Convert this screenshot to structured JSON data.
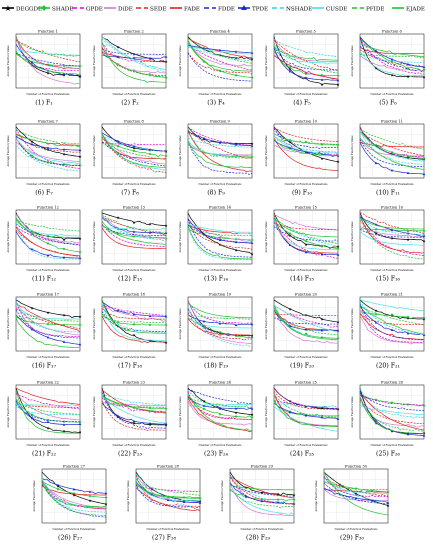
{
  "legend": [
    {
      "name": "DEGGDE",
      "color": "#000000",
      "dash": "",
      "marker": "star"
    },
    {
      "name": "SHADE",
      "color": "#22c233",
      "dash": "",
      "marker": "diamond"
    },
    {
      "name": "GPDE",
      "color": "#e000e0",
      "dash": "5,3",
      "marker": ""
    },
    {
      "name": "DiDE",
      "color": "#d47ad4",
      "dash": "",
      "marker": ""
    },
    {
      "name": "SEDE",
      "color": "#e02020",
      "dash": "5,3",
      "marker": ""
    },
    {
      "name": "FADE",
      "color": "#e02020",
      "dash": "",
      "marker": ""
    },
    {
      "name": "FDDE",
      "color": "#1a2ad0",
      "dash": "5,3",
      "marker": ""
    },
    {
      "name": "TPDE",
      "color": "#1a2ad0",
      "dash": "",
      "marker": "triangle"
    },
    {
      "name": "NSHADE",
      "color": "#2ad8e8",
      "dash": "5,3",
      "marker": ""
    },
    {
      "name": "CUSDE",
      "color": "#4be0e0",
      "dash": "",
      "marker": ""
    },
    {
      "name": "PFIDE",
      "color": "#22c233",
      "dash": "5,3",
      "marker": ""
    },
    {
      "name": "EJADE",
      "color": "#22c233",
      "dash": "",
      "marker": ""
    }
  ],
  "chart_data": [
    {
      "type": "line",
      "title": "Function 1",
      "caption": "(1) F₁",
      "ylabel": "Average Function Value",
      "xlabel": "Number of Function Evaluations"
    },
    {
      "type": "line",
      "title": "Function 2",
      "caption": "(2) F₂",
      "ylabel": "Average Function Value",
      "xlabel": "Number of Function Evaluations"
    },
    {
      "type": "line",
      "title": "Function 4",
      "caption": "(3) F₄",
      "ylabel": "Average Function Value",
      "xlabel": "Number of Function Evaluations"
    },
    {
      "type": "line",
      "title": "Function 5",
      "caption": "(4) F₅",
      "ylabel": "Average Function Value",
      "xlabel": "Number of Function Evaluations"
    },
    {
      "type": "line",
      "title": "Function 6",
      "caption": "(5) F₆",
      "ylabel": "Average Function Value",
      "xlabel": "Number of Function Evaluations"
    },
    {
      "type": "line",
      "title": "Function 7",
      "caption": "(6) F₇",
      "ylabel": "Average Function Value",
      "xlabel": "Number of Function Evaluations"
    },
    {
      "type": "line",
      "title": "Function 8",
      "caption": "(7) F₈",
      "ylabel": "Average Function Value",
      "xlabel": "Number of Function Evaluations"
    },
    {
      "type": "line",
      "title": "Function 9",
      "caption": "(8) F₉",
      "ylabel": "Average Function Value",
      "xlabel": "Number of Function Evaluations"
    },
    {
      "type": "line",
      "title": "Function 10",
      "caption": "(9) F₁₀",
      "ylabel": "Average Function Value",
      "xlabel": "Number of Function Evaluations"
    },
    {
      "type": "line",
      "title": "Function 11",
      "caption": "(10) F₁₁",
      "ylabel": "Average Function Value",
      "xlabel": "Number of Function Evaluations"
    },
    {
      "type": "line",
      "title": "Function 12",
      "caption": "(11) F₁₂",
      "ylabel": "Average Function Value",
      "xlabel": "Number of Function Evaluations"
    },
    {
      "type": "line",
      "title": "Function 13",
      "caption": "(12) F₁₃",
      "ylabel": "Average Function Value",
      "xlabel": "Number of Function Evaluations"
    },
    {
      "type": "line",
      "title": "Function 14",
      "caption": "(13) F₁₄",
      "ylabel": "Average Function Value",
      "xlabel": "Number of Function Evaluations"
    },
    {
      "type": "line",
      "title": "Function 15",
      "caption": "(14) F₁₅",
      "ylabel": "Average Function Value",
      "xlabel": "Number of Function Evaluations"
    },
    {
      "type": "line",
      "title": "Function 16",
      "caption": "(15) F₁₆",
      "ylabel": "Average Function Value",
      "xlabel": "Number of Function Evaluations"
    },
    {
      "type": "line",
      "title": "Function 17",
      "caption": "(16) F₁₇",
      "ylabel": "Average Function Value",
      "xlabel": "Number of Function Evaluations"
    },
    {
      "type": "line",
      "title": "Function 18",
      "caption": "(17) F₁₈",
      "ylabel": "Average Function Value",
      "xlabel": "Number of Function Evaluations"
    },
    {
      "type": "line",
      "title": "Function 19",
      "caption": "(18) F₁₉",
      "ylabel": "Average Function Value",
      "xlabel": "Number of Function Evaluations"
    },
    {
      "type": "line",
      "title": "Function 20",
      "caption": "(19) F₂₀",
      "ylabel": "Average Function Value",
      "xlabel": "Number of Function Evaluations"
    },
    {
      "type": "line",
      "title": "Function 21",
      "caption": "(20) F₂₁",
      "ylabel": "Average Function Value",
      "xlabel": "Number of Function Evaluations"
    },
    {
      "type": "line",
      "title": "Function 22",
      "caption": "(21) F₂₂",
      "ylabel": "Average Function Value",
      "xlabel": "Number of Function Evaluations"
    },
    {
      "type": "line",
      "title": "Function 23",
      "caption": "(22) F₂₃",
      "ylabel": "Average Function Value",
      "xlabel": "Number of Function Evaluations"
    },
    {
      "type": "line",
      "title": "Function 24",
      "caption": "(23) F₂₄",
      "ylabel": "Average Function Value",
      "xlabel": "Number of Function Evaluations"
    },
    {
      "type": "line",
      "title": "Function 25",
      "caption": "(24) F₂₅",
      "ylabel": "Average Function Value",
      "xlabel": "Number of Function Evaluations"
    },
    {
      "type": "line",
      "title": "Function 26",
      "caption": "(25) F₂₆",
      "ylabel": "Average Function Value",
      "xlabel": "Number of Function Evaluations"
    },
    {
      "type": "line",
      "title": "Function 27",
      "caption": "(26) F₂₇",
      "ylabel": "Average Function Value",
      "xlabel": "Number of Function Evaluations"
    },
    {
      "type": "line",
      "title": "Function 28",
      "caption": "(27) F₂₈",
      "ylabel": "Average Function Value",
      "xlabel": "Number of Function Evaluations"
    },
    {
      "type": "line",
      "title": "Function 29",
      "caption": "(28) F₂₉",
      "ylabel": "Average Function Value",
      "xlabel": "Number of Function Evaluations"
    },
    {
      "type": "line",
      "title": "Function 30",
      "caption": "(29) F₃₀",
      "ylabel": "Average Function Value",
      "xlabel": "Number of Function Evaluations"
    }
  ]
}
